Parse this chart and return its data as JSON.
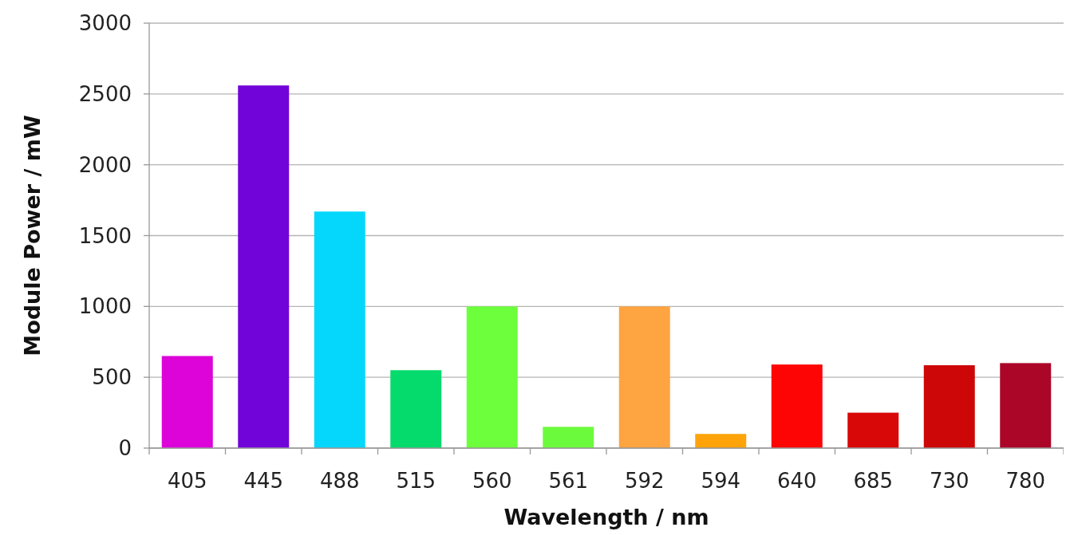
{
  "chart_data": {
    "type": "bar",
    "xlabel": "Wavelength / nm",
    "ylabel": "Module Power / mW",
    "categories": [
      "405",
      "445",
      "488",
      "515",
      "560",
      "561",
      "592",
      "594",
      "640",
      "685",
      "730",
      "780"
    ],
    "values": [
      650,
      2560,
      1670,
      550,
      1000,
      150,
      1000,
      100,
      590,
      250,
      585,
      600
    ],
    "colors": [
      "#dc04d9",
      "#7105d9",
      "#05d7fc",
      "#05db6c",
      "#6dfe3c",
      "#6cfb3c",
      "#fea440",
      "#fea40a",
      "#fe0505",
      "#d80808",
      "#cd0707",
      "#ab0628"
    ],
    "ylim": [
      0,
      3000
    ],
    "yticks": [
      0,
      500,
      1000,
      1500,
      2000,
      2500,
      3000
    ],
    "grid": "y"
  }
}
